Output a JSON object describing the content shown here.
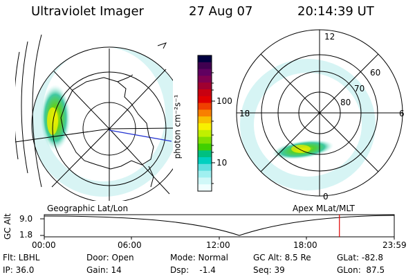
{
  "header": {
    "instrument": "Ultraviolet Imager",
    "date": "27 Aug 07",
    "time": "20:14:39 UT"
  },
  "colorbar": {
    "label": "photon cm⁻²s⁻¹",
    "ticks": [
      "100",
      "10"
    ],
    "colors": [
      "#000040",
      "#400050",
      "#600060",
      "#800050",
      "#a00030",
      "#c80010",
      "#e00000",
      "#f04000",
      "#f88000",
      "#f8c000",
      "#f8f000",
      "#c0f000",
      "#80e000",
      "#40d000",
      "#00c080",
      "#00d0c0",
      "#60e0e0",
      "#a0f0f0",
      "#d0f8f8",
      "#f0ffff"
    ]
  },
  "left_panel": {
    "caption": "Geographic Lat/Lon"
  },
  "right_panel": {
    "caption": "Apex MLat/MLT",
    "mlt_labels": {
      "top": "12",
      "left": "18",
      "right": "6",
      "bottom": "0"
    },
    "mlat_labels": [
      "60",
      "70",
      "80"
    ]
  },
  "timeline": {
    "ylabel": "GC Alt",
    "yticks": [
      "9.0",
      "1.8"
    ],
    "xticks": [
      "00:00",
      "06:00",
      "12:00",
      "18:00",
      "23:59"
    ],
    "marker_hour": 20.24,
    "marker_color": "#e00000"
  },
  "footer": {
    "row1": [
      "Flt: LBHL",
      "Door: Open",
      "Mode: Normal",
      "GC Alt: 8.5 Re",
      "GLat: -82.8"
    ],
    "row2": [
      "IP: 36.0",
      "Gain: 14",
      "Dsp:    -1.4",
      "Seq: 39",
      "GLon:  87.5"
    ]
  }
}
